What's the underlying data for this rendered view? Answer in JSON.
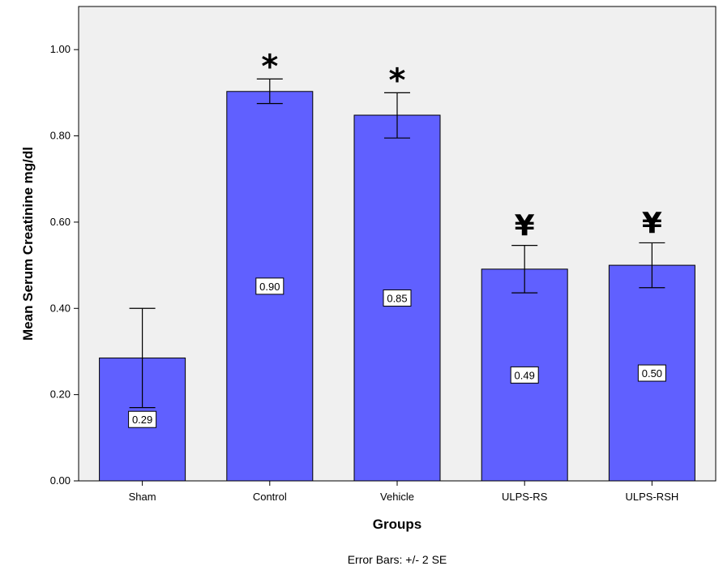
{
  "chart_data": {
    "type": "bar",
    "categories": [
      "Sham",
      "Control",
      "Vehicle",
      "ULPS-RS",
      "ULPS-RSH"
    ],
    "values": [
      0.285,
      0.903,
      0.848,
      0.491,
      0.5
    ],
    "data_labels": [
      "0.29",
      "0.90",
      "0.85",
      "0.49",
      "0.50"
    ],
    "error_low": [
      0.17,
      0.875,
      0.795,
      0.436,
      0.448
    ],
    "error_high": [
      0.4,
      0.932,
      0.9,
      0.546,
      0.552
    ],
    "markers": [
      "",
      "*",
      "*",
      "¥",
      "¥"
    ],
    "xlabel": "Groups",
    "ylabel": "Mean Serum Creatinine mg/dl",
    "yticks": [
      "0.00",
      "0.20",
      "0.40",
      "0.60",
      "0.80",
      "1.00"
    ],
    "ylim": [
      0,
      1.1
    ],
    "note": "Error Bars: +/- 2 SE",
    "grid": false,
    "bar_color": "#6060ff",
    "plot_background": "#f0f0f0"
  }
}
